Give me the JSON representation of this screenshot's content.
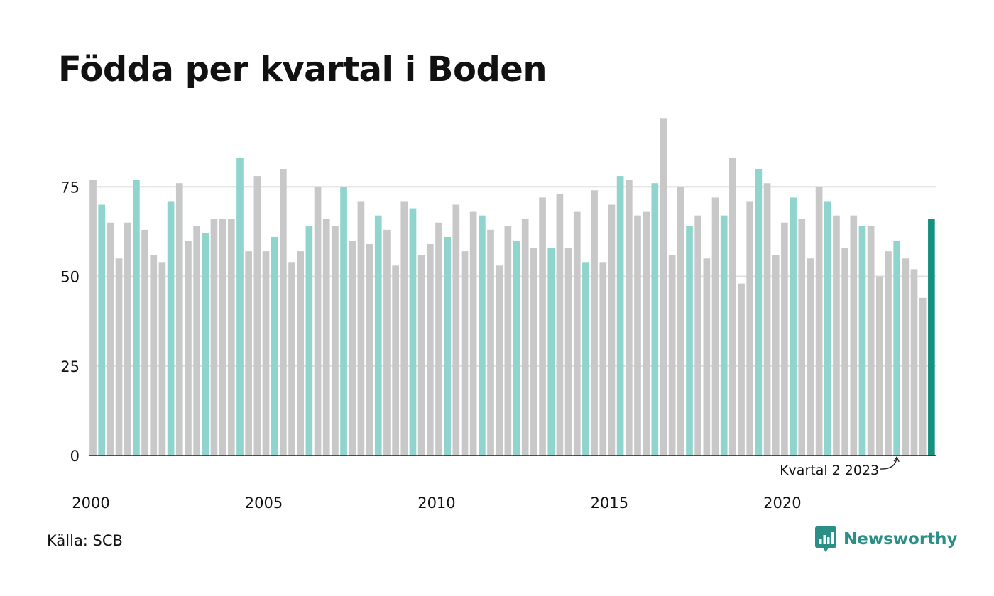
{
  "title": "Födda per kvartal i Boden",
  "source": "Källa: SCB",
  "brand": {
    "name": "Newsworthy",
    "icon": "bar-chart-speech-bubble-icon"
  },
  "colors": {
    "grey": "#c8c8c8",
    "q2": "#8fd5cd",
    "highlight": "#16917f",
    "grid": "#dedede",
    "axis": "#222222"
  },
  "chart_data": {
    "type": "bar",
    "title": "Födda per kvartal i Boden",
    "xlabel": "",
    "ylabel": "",
    "ylim": [
      0,
      100
    ],
    "yticks": [
      0,
      25,
      50,
      75
    ],
    "xticks": [
      "2000",
      "2005",
      "2010",
      "2015",
      "2020"
    ],
    "grid": true,
    "start_year": 2000,
    "highlight_quarter": 2,
    "annotation": {
      "text": "Kvartal 2 2023"
    },
    "values": [
      77,
      70,
      65,
      55,
      65,
      77,
      63,
      56,
      54,
      71,
      76,
      60,
      64,
      62,
      66,
      66,
      66,
      83,
      57,
      78,
      57,
      61,
      80,
      54,
      57,
      64,
      75,
      66,
      64,
      75,
      60,
      71,
      59,
      67,
      63,
      53,
      71,
      69,
      56,
      59,
      65,
      61,
      70,
      57,
      68,
      67,
      63,
      53,
      64,
      60,
      66,
      58,
      72,
      58,
      73,
      58,
      68,
      54,
      74,
      54,
      70,
      78,
      77,
      67,
      68,
      76,
      94,
      56,
      75,
      64,
      67,
      55,
      72,
      67,
      83,
      48,
      71,
      80,
      76,
      56,
      65,
      72,
      66,
      55,
      75,
      71,
      67,
      58,
      67,
      64,
      64,
      50,
      57,
      60,
      55,
      52,
      44,
      66
    ]
  }
}
